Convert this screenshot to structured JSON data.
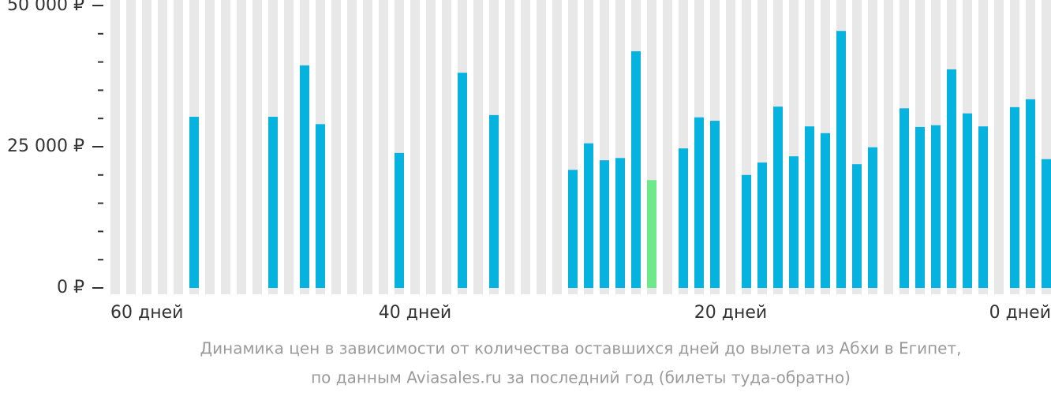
{
  "chart_data": {
    "type": "bar",
    "caption": [
      "Динамика цен в зависимости от количества оставшихся дней до вылета из Абхи в Египет,",
      "по данным Aviasales.ru за последний год (билеты туда-обратно)"
    ],
    "x": [
      59,
      58,
      57,
      56,
      55,
      54,
      53,
      52,
      51,
      50,
      49,
      48,
      47,
      46,
      45,
      44,
      43,
      42,
      41,
      40,
      39,
      38,
      37,
      36,
      35,
      34,
      33,
      32,
      31,
      30,
      29,
      28,
      27,
      26,
      25,
      24,
      23,
      22,
      21,
      20,
      19,
      18,
      17,
      16,
      15,
      14,
      13,
      12,
      11,
      10,
      9,
      8,
      7,
      6,
      5,
      4,
      3,
      2,
      1,
      0
    ],
    "xlim": [
      60,
      0
    ],
    "xticks": [
      {
        "value": 60,
        "label": "60 дней"
      },
      {
        "value": 40,
        "label": "40 дней"
      },
      {
        "value": 20,
        "label": "20 дней"
      },
      {
        "value": 0,
        "label": "0 дней"
      }
    ],
    "ylim": [
      0,
      50000
    ],
    "yticks": [
      {
        "value": 0,
        "label": "0 ₽"
      },
      {
        "value": 25000,
        "label": "25 000 ₽"
      },
      {
        "value": 50000,
        "label": "50 000 ₽"
      }
    ],
    "yminor_ticks": [
      5000,
      10000,
      15000,
      20000,
      30000,
      35000,
      40000,
      45000
    ],
    "series": [
      {
        "color": "#06b2de",
        "values": [
          null,
          null,
          null,
          null,
          null,
          30300,
          null,
          null,
          null,
          null,
          30300,
          null,
          39400,
          29000,
          null,
          null,
          null,
          null,
          23900,
          null,
          null,
          null,
          38100,
          null,
          30600,
          null,
          null,
          null,
          null,
          20900,
          25600,
          22600,
          23000,
          41900,
          null,
          null,
          24700,
          30200,
          29600,
          null,
          20000,
          22200,
          32100,
          23300,
          28600,
          27400,
          45500,
          21900,
          24900,
          null,
          31800,
          28500,
          28800,
          38700,
          30900,
          28600,
          null,
          32000,
          33400,
          22800
        ]
      },
      {
        "color": "#6ee888",
        "values": [
          null,
          null,
          null,
          null,
          null,
          null,
          null,
          null,
          null,
          null,
          null,
          null,
          null,
          null,
          null,
          null,
          null,
          null,
          null,
          null,
          null,
          null,
          null,
          null,
          null,
          null,
          null,
          null,
          null,
          null,
          null,
          null,
          null,
          null,
          19100,
          null,
          null,
          null,
          null,
          null,
          null,
          null,
          null,
          null,
          null,
          null,
          null,
          null,
          null,
          null,
          null,
          null,
          null,
          null,
          null,
          null,
          null,
          null,
          null,
          null
        ]
      }
    ]
  }
}
